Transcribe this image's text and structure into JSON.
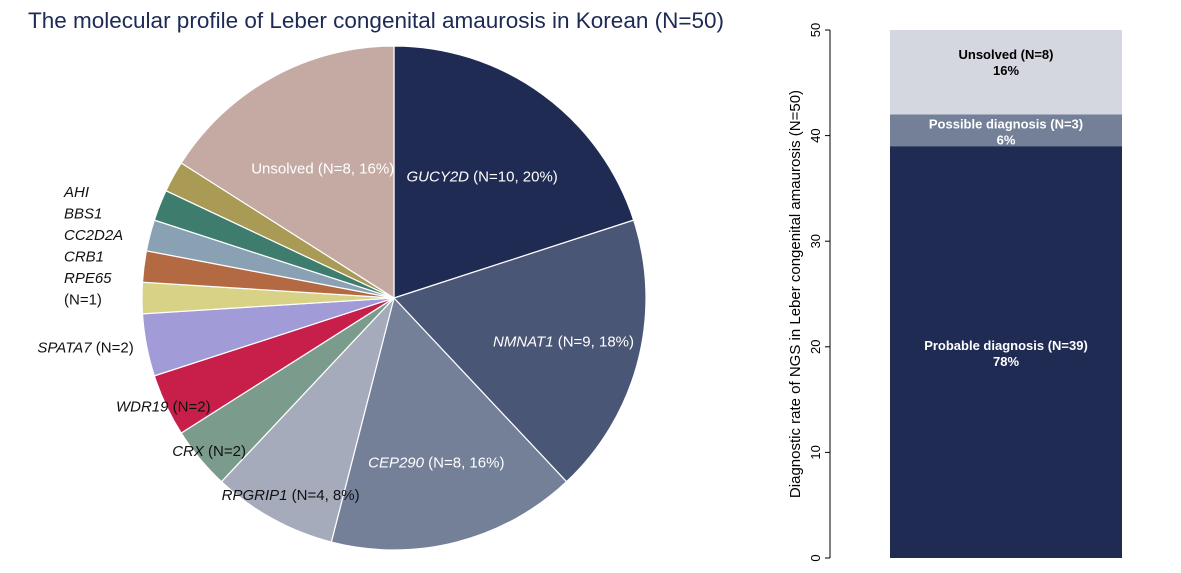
{
  "chart_data": [
    {
      "type": "pie",
      "title": "The molecular profile of Leber congenital amaurosis in Korean (N=50)",
      "slices": [
        {
          "gene": "GUCY2D",
          "rest": " (N=10, 20%)",
          "value": 10,
          "color": "#1f2b53"
        },
        {
          "gene": "NMNAT1",
          "rest": " (N=9, 18%)",
          "value": 9,
          "color": "#4a5675"
        },
        {
          "gene": "CEP290",
          "rest": " (N=8, 16%)",
          "value": 8,
          "color": "#747f98"
        },
        {
          "gene": "RPGRIP1",
          "rest": " (N=4, 8%)",
          "value": 4,
          "color": "#a5abbb"
        },
        {
          "gene": "CRX",
          "rest": " (N=2)",
          "value": 2,
          "color": "#7b9b8c"
        },
        {
          "gene": "WDR19",
          "rest": " (N=2)",
          "value": 2,
          "color": "#c81f4a"
        },
        {
          "gene": "SPATA7",
          "rest": " (N=2)",
          "value": 2,
          "color": "#a19bd8"
        },
        {
          "gene": "RPE65",
          "rest": "",
          "value": 1,
          "color": "#d8d286"
        },
        {
          "gene": "CRB1",
          "rest": "",
          "value": 1,
          "color": "#b36a43"
        },
        {
          "gene": "CC2D2A",
          "rest": "",
          "value": 1,
          "color": "#8aa1b3"
        },
        {
          "gene": "BBS1",
          "rest": "",
          "value": 1,
          "color": "#3e7d6e"
        },
        {
          "gene": "AHI",
          "rest": "",
          "value": 1,
          "color": "#a99a55"
        },
        {
          "gene": "",
          "rest": "Unsolved (N=8, 16%)",
          "value": 8,
          "color": "#c4aaa3"
        }
      ],
      "single_gene_group_note": "(N=1)"
    },
    {
      "type": "bar",
      "stacked": true,
      "ylabel": "Diagnostic rate of NGS in Leber congenital amaurosis (N=50)",
      "ylim": [
        0,
        50
      ],
      "yticks": [
        0,
        10,
        20,
        30,
        40,
        50
      ],
      "grid": false,
      "series": [
        {
          "name": "Probable diagnosis (N=39)",
          "percent": "78%",
          "value": 39,
          "color": "#1f2b53",
          "text_color": "#ffffff"
        },
        {
          "name": "Possible diagnosis (N=3)",
          "percent": "6%",
          "value": 3,
          "color": "#747f98",
          "text_color": "#ffffff"
        },
        {
          "name": "Unsolved (N=8)",
          "percent": "16%",
          "value": 8,
          "color": "#d4d6e0",
          "text_color": "#000000"
        }
      ]
    }
  ]
}
